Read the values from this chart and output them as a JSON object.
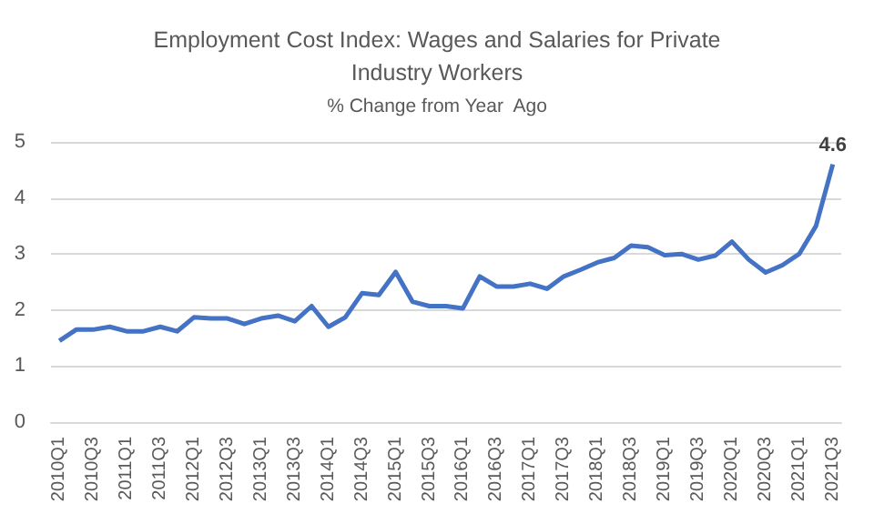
{
  "chart_data": {
    "type": "line",
    "title": "Employment Cost Index: Wages and Salaries for Private\nIndustry Workers",
    "subtitle": "% Change from Year  Ago",
    "categories": [
      "2010Q1",
      null,
      "2010Q3",
      null,
      "2011Q1",
      null,
      "2011Q3",
      null,
      "2012Q1",
      null,
      "2012Q3",
      null,
      "2013Q1",
      null,
      "2013Q3",
      null,
      "2014Q1",
      null,
      "2014Q3",
      null,
      "2015Q1",
      null,
      "2015Q3",
      null,
      "2016Q1",
      null,
      "2016Q3",
      null,
      "2017Q1",
      null,
      "2017Q3",
      null,
      "2018Q1",
      null,
      "2018Q3",
      null,
      "2019Q1",
      null,
      "2019Q3",
      null,
      "2020Q1",
      null,
      "2020Q3",
      null,
      "2021Q1",
      null,
      "2021Q3"
    ],
    "series": [
      {
        "color": "#4472c4",
        "values": [
          1.45,
          1.65,
          1.65,
          1.7,
          1.62,
          1.62,
          1.7,
          1.62,
          1.87,
          1.85,
          1.85,
          1.75,
          1.85,
          1.9,
          1.8,
          2.07,
          1.7,
          1.87,
          2.3,
          2.27,
          2.68,
          2.15,
          2.07,
          2.07,
          2.03,
          2.6,
          2.42,
          2.42,
          2.47,
          2.38,
          2.6,
          2.72,
          2.85,
          2.93,
          3.15,
          3.12,
          2.98,
          3.0,
          2.9,
          2.97,
          3.22,
          2.9,
          2.67,
          2.8,
          3.0,
          3.5,
          4.6
        ],
        "value_labels": [
          null,
          null,
          null,
          null,
          null,
          null,
          null,
          null,
          null,
          null,
          null,
          null,
          null,
          null,
          null,
          null,
          null,
          null,
          null,
          null,
          null,
          null,
          null,
          null,
          null,
          null,
          null,
          null,
          null,
          null,
          null,
          null,
          null,
          null,
          null,
          null,
          null,
          null,
          null,
          null,
          null,
          null,
          null,
          null,
          null,
          null,
          "4.6"
        ]
      }
    ],
    "ylim": [
      0,
      5
    ],
    "yticks": [
      0,
      1,
      2,
      3,
      4,
      5
    ],
    "grid": "y",
    "marker": "none",
    "line_style": "solid"
  }
}
